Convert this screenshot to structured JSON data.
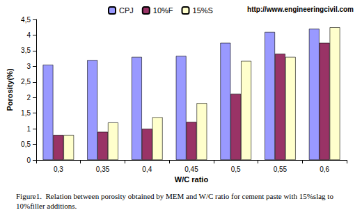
{
  "chart_data": {
    "type": "bar",
    "title": "Figure1.  Relation between porosity obtained by MEM and W/C ratio for cement paste with 15%slag to 10%filler additions.",
    "annotations": [
      "http://www.engineeringcivil.com"
    ],
    "x_label": "W/C ratio",
    "y_label": "Porosity(%)",
    "categories": [
      "0,3",
      "0,35",
      "0,4",
      "0,45",
      "0,5",
      "0,55",
      "0,6"
    ],
    "series": [
      {
        "name": "CPJ",
        "color": "#9999ff",
        "values": [
          3.05,
          3.2,
          3.3,
          3.33,
          3.75,
          4.1,
          4.2
        ]
      },
      {
        "name": "10%F",
        "color": "#993366",
        "values": [
          0.8,
          0.9,
          1.0,
          1.22,
          2.12,
          3.4,
          3.75
        ]
      },
      {
        "name": "15%S",
        "color": "#ffffcc",
        "values": [
          0.8,
          1.2,
          1.37,
          1.82,
          3.17,
          3.3,
          4.25
        ]
      }
    ],
    "ylim": [
      0,
      4.5
    ],
    "yticks": [
      0,
      {
        "value": 0.5,
        "label": "0,5"
      },
      1,
      {
        "value": 1.5,
        "label": "1,5"
      },
      2,
      {
        "value": 2.5,
        "label": "2,5"
      },
      3,
      {
        "value": 3.5,
        "label": "3,5"
      },
      4,
      {
        "value": 4.5,
        "label": "4,5"
      }
    ],
    "grid": false,
    "legend": "top"
  }
}
